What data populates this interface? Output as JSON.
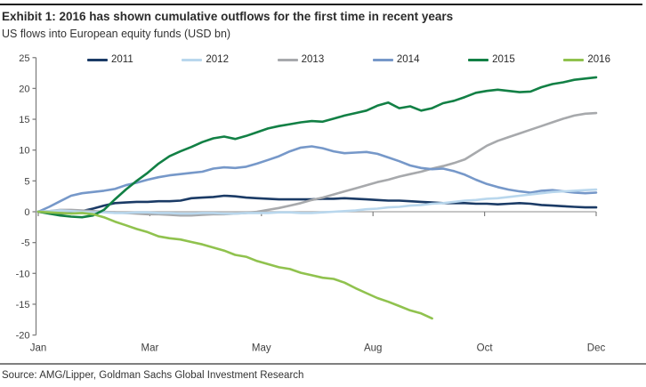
{
  "header": {
    "title": "Exhibit 1: 2016 has shown cumulative outflows for the first time in recent years",
    "subtitle": "US flows into European equity funds (USD bn)"
  },
  "footer": {
    "source": "Source: AMG/Lipper, Goldman Sachs Global Investment Research"
  },
  "colors": {
    "top_rule": "#1f1f1f",
    "bottom_rule": "#7f7f7f",
    "axis_line": "#808080",
    "zero_line": "#b3b3b3",
    "axis_text": "#404040"
  },
  "chart_data": {
    "type": "line",
    "title": "US flows into European equity funds (USD bn)",
    "xlabel": "",
    "ylabel": "USD bn",
    "ylim": [
      -20,
      25
    ],
    "grid": false,
    "legend_position": "top",
    "x_axis": {
      "tick_labels": [
        "Jan",
        "Mar",
        "May",
        "Aug",
        "Oct",
        "Dec"
      ],
      "tick_weeks": [
        1,
        11.2,
        21.4,
        31.6,
        41.8,
        52
      ],
      "weeks_total": 52
    },
    "y_axis": {
      "ticks": [
        25,
        20,
        15,
        10,
        5,
        0,
        -5,
        -10,
        -15,
        -20
      ]
    },
    "series": [
      {
        "name": "2011",
        "color": "#1b3b66",
        "values": [
          0,
          -0.2,
          -0.3,
          -0.2,
          0.1,
          0.5,
          1.0,
          1.4,
          1.5,
          1.6,
          1.6,
          1.7,
          1.7,
          1.8,
          2.2,
          2.3,
          2.4,
          2.6,
          2.5,
          2.3,
          2.2,
          2.1,
          2.0,
          2.0,
          2.0,
          2.0,
          2.1,
          2.1,
          2.2,
          2.1,
          2.0,
          1.9,
          1.8,
          1.8,
          1.7,
          1.6,
          1.5,
          1.4,
          1.4,
          1.4,
          1.3,
          1.3,
          1.2,
          1.3,
          1.4,
          1.3,
          1.1,
          1.0,
          0.9,
          0.8,
          0.7,
          0.7
        ]
      },
      {
        "name": "2012",
        "color": "#b9d7ed",
        "values": [
          0,
          0.1,
          0.2,
          0.1,
          0.0,
          -0.1,
          -0.1,
          -0.2,
          -0.2,
          -0.1,
          -0.1,
          -0.2,
          -0.2,
          -0.3,
          -0.3,
          -0.2,
          -0.2,
          -0.3,
          -0.3,
          -0.2,
          -0.2,
          -0.2,
          -0.1,
          -0.1,
          -0.2,
          -0.2,
          -0.1,
          0.0,
          0.1,
          0.2,
          0.4,
          0.5,
          0.7,
          0.8,
          1.0,
          1.1,
          1.3,
          1.4,
          1.6,
          1.8,
          1.9,
          2.1,
          2.2,
          2.4,
          2.6,
          2.8,
          3.0,
          3.2,
          3.3,
          3.4,
          3.5,
          3.6
        ]
      },
      {
        "name": "2013",
        "color": "#a7a9ac",
        "values": [
          0,
          0.1,
          0.3,
          0.3,
          0.2,
          0.1,
          0.0,
          -0.1,
          -0.2,
          -0.3,
          -0.4,
          -0.4,
          -0.5,
          -0.6,
          -0.6,
          -0.5,
          -0.4,
          -0.4,
          -0.3,
          -0.2,
          0.0,
          0.3,
          0.6,
          1.0,
          1.4,
          1.9,
          2.3,
          2.8,
          3.3,
          3.8,
          4.3,
          4.8,
          5.2,
          5.7,
          6.1,
          6.5,
          7.0,
          7.4,
          7.9,
          8.5,
          9.6,
          10.7,
          11.5,
          12.1,
          12.7,
          13.3,
          13.9,
          14.5,
          15.1,
          15.6,
          15.9,
          16.0
        ]
      },
      {
        "name": "2014",
        "color": "#7698c9",
        "values": [
          0,
          0.8,
          1.7,
          2.6,
          3.0,
          3.2,
          3.4,
          3.7,
          4.3,
          4.7,
          5.2,
          5.6,
          5.9,
          6.1,
          6.3,
          6.5,
          7.0,
          7.2,
          7.1,
          7.3,
          7.8,
          8.4,
          9.0,
          9.8,
          10.4,
          10.6,
          10.3,
          9.8,
          9.5,
          9.6,
          9.7,
          9.4,
          8.8,
          8.2,
          7.5,
          7.1,
          6.9,
          7.0,
          6.6,
          6.0,
          5.2,
          4.5,
          4.0,
          3.6,
          3.3,
          3.1,
          3.4,
          3.5,
          3.3,
          3.1,
          3.0,
          3.1
        ]
      },
      {
        "name": "2015",
        "color": "#128045",
        "values": [
          0,
          -0.3,
          -0.6,
          -0.8,
          -0.9,
          -0.6,
          0.3,
          2.0,
          3.6,
          5.0,
          6.3,
          7.8,
          9.0,
          9.8,
          10.5,
          11.3,
          11.9,
          12.2,
          11.8,
          12.3,
          12.9,
          13.5,
          13.9,
          14.2,
          14.5,
          14.7,
          14.6,
          15.1,
          15.6,
          16.0,
          16.4,
          17.2,
          17.7,
          16.8,
          17.1,
          16.4,
          16.8,
          17.6,
          18.0,
          18.6,
          19.3,
          19.6,
          19.8,
          19.6,
          19.4,
          19.5,
          20.2,
          20.7,
          21.0,
          21.4,
          21.6,
          21.8
        ]
      },
      {
        "name": "2016",
        "color": "#90c24e",
        "values": [
          0,
          -0.1,
          -0.2,
          -0.3,
          -0.2,
          -0.4,
          -0.9,
          -1.6,
          -2.2,
          -2.8,
          -3.3,
          -4.0,
          -4.3,
          -4.5,
          -4.9,
          -5.3,
          -5.8,
          -6.3,
          -7.0,
          -7.3,
          -8.0,
          -8.5,
          -9.0,
          -9.3,
          -9.9,
          -10.3,
          -10.7,
          -10.9,
          -11.5,
          -12.4,
          -13.2,
          -14.0,
          -14.6,
          -15.3,
          -16.0,
          -16.5,
          -17.3
        ]
      }
    ]
  }
}
